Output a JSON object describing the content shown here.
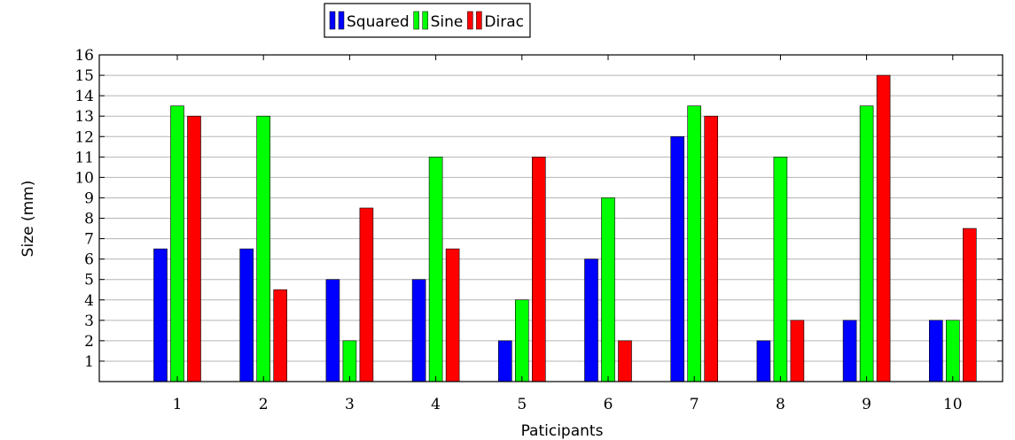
{
  "chart_data": {
    "type": "bar",
    "categories": [
      "1",
      "2",
      "3",
      "4",
      "5",
      "6",
      "7",
      "8",
      "9",
      "10"
    ],
    "series": [
      {
        "name": "Squared",
        "color": "#0000ff",
        "values": [
          6.5,
          6.5,
          5,
          5,
          2,
          6,
          12,
          2,
          3,
          3
        ]
      },
      {
        "name": "Sine",
        "color": "#00ff00",
        "values": [
          13.5,
          13,
          2,
          11,
          4,
          9,
          13.5,
          11,
          13.5,
          3
        ]
      },
      {
        "name": "Dirac",
        "color": "#ff0000",
        "values": [
          13,
          4.5,
          8.5,
          6.5,
          11,
          2,
          13,
          3,
          15,
          7.5
        ]
      }
    ],
    "xlabel": "Paticipants",
    "ylabel": "Size (mm)",
    "ylim": [
      0,
      16
    ],
    "yticks": [
      1,
      2,
      3,
      4,
      5,
      6,
      7,
      8,
      9,
      10,
      11,
      12,
      13,
      14,
      15,
      16
    ],
    "grid": "horizontal",
    "legend_position": "top-center"
  }
}
